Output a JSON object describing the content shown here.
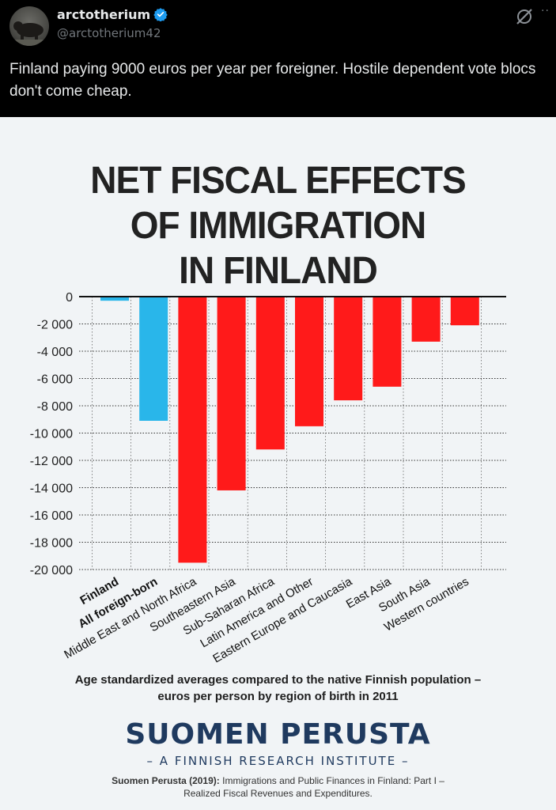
{
  "post": {
    "display_name": "arctotherium",
    "handle": "@arctotherium42",
    "text": "Finland paying 9000 euros per year per foreigner. Hostile dependent vote blocs don't come cheap.",
    "icons": [
      "verified-badge-icon",
      "grok-icon",
      "more-icon"
    ],
    "more_label": "··"
  },
  "infographic": {
    "title_lines": [
      "NET FISCAL EFFECTS",
      "OF IMMIGRATION",
      "IN FINLAND"
    ],
    "caption_lines": [
      "Age standardized averages compared to the native Finnish population –",
      "euros per person by region of birth in 2011"
    ],
    "brand": "SUOMEN PERUSTA",
    "brand_sub": "– A FINNISH RESEARCH INSTITUTE –",
    "citation_author": "Suomen Perusta (2019):",
    "citation_rest": "Immigrations and Public Finances in Finland: Part I –",
    "citation_line2": "Realized Fiscal Revenues and Expenditures."
  },
  "chart_data": {
    "type": "bar",
    "categories": [
      "Finland",
      "All foreign-born",
      "Middle East and North Africa",
      "Southeastern Asia",
      "Sub-Saharan Africa",
      "Latin America and Other",
      "Eastern Europe and Caucasia",
      "East Asia",
      "South Asia",
      "Western countries"
    ],
    "values": [
      -300,
      -9100,
      -19500,
      -14200,
      -11200,
      -9500,
      -7600,
      -6600,
      -3300,
      -2100
    ],
    "colors": [
      "#29b6ea",
      "#29b6ea",
      "#ff1a1a",
      "#ff1a1a",
      "#ff1a1a",
      "#ff1a1a",
      "#ff1a1a",
      "#ff1a1a",
      "#ff1a1a",
      "#ff1a1a"
    ],
    "bold_categories": [
      "Finland",
      "All foreign-born"
    ],
    "yticks": [
      "0",
      "-2 000",
      "-4 000",
      "-6 000",
      "-8 000",
      "-10 000",
      "-12 000",
      "-14 000",
      "-16 000",
      "-18 000",
      "-20 000"
    ],
    "ylim": [
      -20000,
      0
    ],
    "grid": true,
    "grid_style": "dotted",
    "legend": "none"
  }
}
